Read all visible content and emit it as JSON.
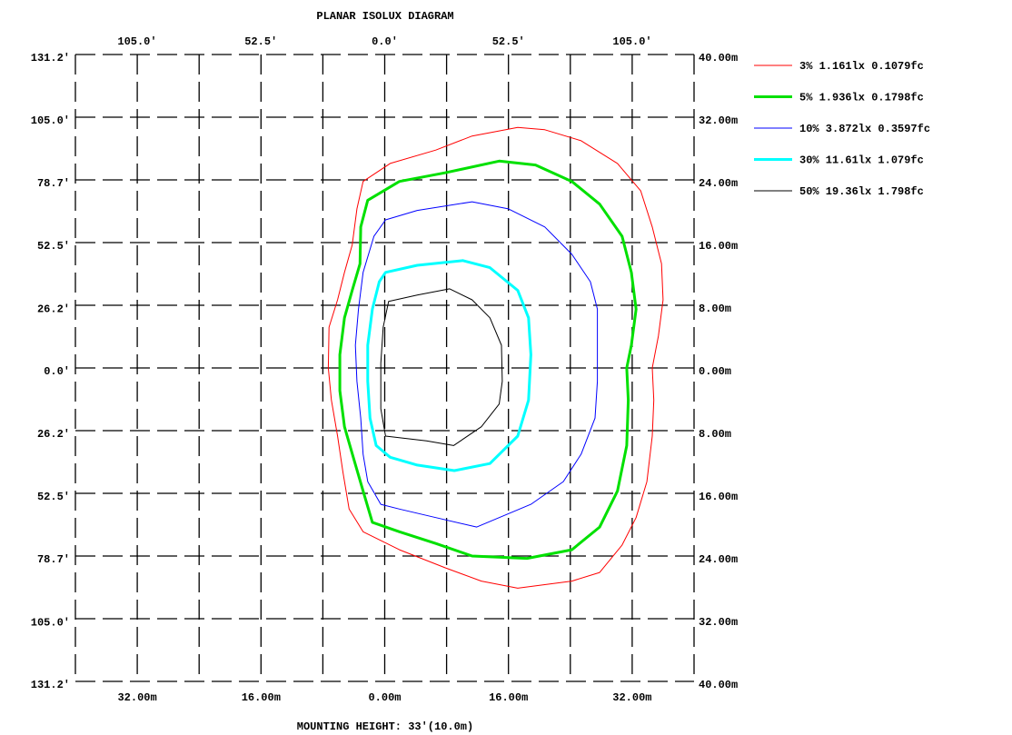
{
  "chart_data": {
    "type": "contour",
    "title": "PLANAR ISOLUX DIAGRAM",
    "xlabel": "MOUNTING HEIGHT: 33'(10.0m)",
    "xlim": [
      -40,
      40
    ],
    "ylim": [
      -40,
      40
    ],
    "xticks": [
      {
        "value": -32,
        "label": "32.00m"
      },
      {
        "value": -16,
        "label": "16.00m"
      },
      {
        "value": 0,
        "label": "0.00m"
      },
      {
        "value": 16,
        "label": "16.00m"
      },
      {
        "value": 32,
        "label": "32.00m"
      }
    ],
    "yticks": [
      {
        "value": 40,
        "label": "40.00m"
      },
      {
        "value": 32,
        "label": "32.00m"
      },
      {
        "value": 24,
        "label": "24.00m"
      },
      {
        "value": 16,
        "label": "16.00m"
      },
      {
        "value": 8,
        "label": "8.00m"
      },
      {
        "value": 0,
        "label": "0.00m"
      },
      {
        "value": -8,
        "label": "8.00m"
      },
      {
        "value": -16,
        "label": "16.00m"
      },
      {
        "value": -24,
        "label": "24.00m"
      },
      {
        "value": -32,
        "label": "32.00m"
      },
      {
        "value": -40,
        "label": "40.00m"
      }
    ],
    "x2lim": [
      -131.2,
      131.2
    ],
    "x2ticks": [
      {
        "value": -105,
        "label": "105.0'"
      },
      {
        "value": -52.5,
        "label": "52.5'"
      },
      {
        "value": 0,
        "label": "0.0'"
      },
      {
        "value": 52.5,
        "label": "52.5'"
      },
      {
        "value": 105,
        "label": "105.0'"
      }
    ],
    "y2lim": [
      -131.2,
      131.2
    ],
    "y2ticks": [
      {
        "value": 131.2,
        "label": "131.2'"
      },
      {
        "value": 105,
        "label": "105.0'"
      },
      {
        "value": 78.7,
        "label": "78.7'"
      },
      {
        "value": 52.5,
        "label": "52.5'"
      },
      {
        "value": 26.2,
        "label": "26.2'"
      },
      {
        "value": 0,
        "label": "0.0'"
      },
      {
        "value": -26.2,
        "label": "26.2'"
      },
      {
        "value": -52.5,
        "label": "52.5'"
      },
      {
        "value": -78.7,
        "label": "78.7'"
      },
      {
        "value": -105,
        "label": "105.0'"
      },
      {
        "value": -131.2,
        "label": "131.2'"
      }
    ],
    "xgrid": [
      -32,
      -24,
      -16,
      -8,
      0,
      8,
      16,
      24,
      32
    ],
    "ygrid": [
      -32,
      -24,
      -16,
      -8,
      0,
      8,
      16,
      24,
      32
    ],
    "grid": true,
    "series": [
      {
        "name": "3% 1.161lx 0.1079fc",
        "color": "#ff0000",
        "width": 1,
        "x": [
          17.2,
          20.7,
          25.4,
          30.1,
          33.1,
          34.6,
          35.8,
          36.0,
          35.4,
          34.6,
          34.8,
          34.6,
          33.9,
          32.5,
          30.7,
          27.8,
          24.2,
          17.2,
          12.5,
          7.8,
          1.9,
          -2.8,
          -4.6,
          -5.4,
          -6.1,
          -6.9,
          -7.3,
          -7.2,
          -6.1,
          -5.2,
          -4.2,
          -3.6,
          -2.8,
          0.7,
          6.6,
          11.3
        ],
        "y": [
          30.7,
          30.4,
          29.0,
          26.1,
          22.6,
          18.0,
          13.3,
          8.7,
          4.1,
          0,
          -4.1,
          -8.7,
          -14.5,
          -19.1,
          -22.6,
          -26.1,
          -27.2,
          -28.1,
          -27.2,
          -25.5,
          -23.2,
          -20.9,
          -18.0,
          -13.3,
          -8.7,
          -4.1,
          0,
          5.2,
          8.7,
          12.2,
          15.7,
          20.3,
          23.8,
          26.1,
          27.8,
          29.6
        ]
      },
      {
        "name": "5% 1.936lx 0.1798fc",
        "color": "#00e000",
        "width": 3,
        "x": [
          14.8,
          19.5,
          24.2,
          27.8,
          30.7,
          31.9,
          32.5,
          31.9,
          31.3,
          31.5,
          31.3,
          30.1,
          27.8,
          24.2,
          18.4,
          11.3,
          6.6,
          1.9,
          -1.6,
          -2.8,
          -4.0,
          -5.2,
          -5.8,
          -5.8,
          -5.2,
          -4.2,
          -3.2,
          -3.1,
          -2.2,
          1.9,
          7.8
        ],
        "y": [
          26.4,
          25.9,
          23.8,
          20.9,
          16.8,
          12.2,
          7.5,
          2.9,
          0,
          -4.1,
          -9.9,
          -15.7,
          -20.3,
          -23.2,
          -24.3,
          -24.0,
          -22.4,
          -20.9,
          -19.7,
          -15.7,
          -11.6,
          -7.5,
          -2.9,
          1.7,
          6.4,
          9.9,
          13.3,
          18.0,
          21.4,
          23.8,
          24.9
        ]
      },
      {
        "name": "10% 3.872lx 0.3597fc",
        "color": "#0000ff",
        "width": 1,
        "x": [
          11.3,
          16.0,
          20.7,
          24.2,
          26.6,
          27.5,
          27.5,
          27.5,
          27.2,
          25.4,
          23.1,
          18.9,
          11.9,
          6.6,
          1.9,
          -0.5,
          -2.2,
          -2.8,
          -3.1,
          -3.6,
          -3.8,
          -3.4,
          -2.8,
          -1.4,
          0.1,
          4.2
        ],
        "y": [
          21.2,
          20.3,
          18.0,
          14.5,
          11.0,
          7.5,
          2.9,
          -1.7,
          -6.4,
          -11.0,
          -14.5,
          -17.4,
          -20.3,
          -19.1,
          -18.0,
          -17.4,
          -14.5,
          -11.0,
          -6.4,
          -1.7,
          2.9,
          7.5,
          12.2,
          16.8,
          18.9,
          20.1
        ]
      },
      {
        "name": "30% 11.61lx 1.079fc",
        "color": "#00ffff",
        "width": 3,
        "x": [
          10.1,
          13.6,
          17.2,
          18.6,
          18.9,
          18.6,
          17.2,
          13.6,
          9.0,
          4.2,
          0.7,
          -1.1,
          -1.9,
          -2.2,
          -2.2,
          -1.6,
          -0.7,
          0.1,
          4.2
        ],
        "y": [
          13.7,
          12.8,
          9.9,
          6.4,
          1.7,
          -4.1,
          -8.7,
          -12.2,
          -13.1,
          -12.4,
          -11.4,
          -9.9,
          -6.4,
          -1.7,
          2.9,
          7.5,
          11.0,
          12.2,
          13.1
        ]
      },
      {
        "name": "50% 19.36lx 1.798fc",
        "color": "#000000",
        "width": 1,
        "x": [
          8.4,
          11.3,
          13.6,
          15.1,
          15.2,
          14.8,
          12.5,
          8.9,
          5.4,
          0.1,
          -0.5,
          -0.5,
          -0.2,
          0.5,
          4.2
        ],
        "y": [
          10.1,
          8.7,
          6.4,
          2.9,
          -1.7,
          -4.6,
          -7.5,
          -9.9,
          -9.3,
          -8.7,
          -5.2,
          0.6,
          5.2,
          8.5,
          9.3
        ]
      }
    ]
  }
}
